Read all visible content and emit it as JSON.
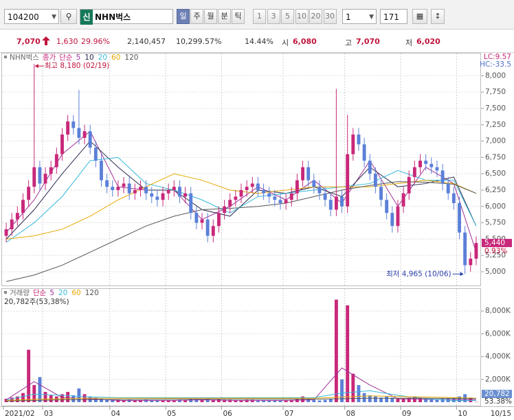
{
  "toolbar": {
    "code": "104200",
    "badge": "신",
    "name": "NHN벅스",
    "periods": [
      "일",
      "주",
      "월",
      "분",
      "틱"
    ],
    "intervals": [
      "1",
      "3",
      "5",
      "10",
      "20",
      "30"
    ],
    "unit": "1",
    "count": "171"
  },
  "info": {
    "price": "7,070",
    "change": "1,630",
    "change_rate": "29.96%",
    "volume": "2,140,457",
    "volume_rate": "10,299.57%",
    "turnover": "14.44%",
    "open_label": "시",
    "open": "6,080",
    "high_label": "고",
    "high": "7,070",
    "low_label": "저",
    "low": "6,020"
  },
  "chart_data": [
    {
      "type": "candlestick",
      "name": "NHN벅스",
      "legend_price": "종가",
      "legend_ma": "단순",
      "open": [
        5550,
        5650,
        5800,
        5900,
        6100,
        6300,
        6600,
        6350,
        6500,
        6600,
        6800,
        7100,
        7300,
        7200,
        7050,
        7150,
        6900,
        6700,
        6400,
        6300,
        6250,
        6300,
        6350,
        6200,
        6250,
        6300,
        6200,
        6150,
        6100,
        6200,
        6250,
        6300,
        6150,
        6200,
        5900,
        5750,
        5800,
        5550,
        5700,
        5900,
        6000,
        6100,
        6150,
        6250,
        6300,
        6350,
        6250,
        6200,
        6150,
        6100,
        6050,
        6100,
        6200,
        6400,
        6600,
        6400,
        6300,
        6200,
        6100,
        5950,
        6150,
        6000,
        6800,
        7100,
        6950,
        6700,
        6500,
        6300,
        6100,
        5900,
        5700,
        6000,
        6200,
        6450,
        6600,
        6700,
        6650,
        6600,
        6550,
        6350,
        6200,
        6050,
        5600,
        5100,
        5200
      ],
      "high": [
        5750,
        5900,
        6000,
        6200,
        6400,
        8180,
        6700,
        6600,
        6700,
        6900,
        7200,
        7400,
        7400,
        7780,
        7250,
        7250,
        7000,
        6800,
        6500,
        6400,
        6400,
        6450,
        6450,
        6350,
        6400,
        6400,
        6300,
        6250,
        6300,
        6350,
        6400,
        6400,
        6300,
        6300,
        6000,
        5900,
        5900,
        5800,
        6000,
        6100,
        6200,
        6250,
        6350,
        6400,
        6450,
        6450,
        6350,
        6300,
        6250,
        6200,
        6200,
        6300,
        6500,
        6700,
        6700,
        6500,
        6400,
        6300,
        6200,
        7800,
        6250,
        7400,
        7200,
        7200,
        7050,
        6800,
        6600,
        6400,
        6200,
        6000,
        6100,
        6300,
        6550,
        6700,
        6800,
        6800,
        6750,
        6700,
        6650,
        6450,
        6300,
        6150,
        5700,
        5300,
        5540
      ],
      "low": [
        5450,
        5550,
        5700,
        5800,
        6000,
        6200,
        6250,
        6250,
        6400,
        6500,
        6700,
        7000,
        7100,
        6950,
        6950,
        6800,
        6600,
        6300,
        6200,
        6150,
        6150,
        6200,
        6100,
        6100,
        6150,
        6100,
        6050,
        6000,
        6000,
        6100,
        6150,
        6050,
        6050,
        5800,
        5650,
        5650,
        5450,
        5450,
        5600,
        5800,
        5900,
        6000,
        6050,
        6150,
        6200,
        6150,
        6100,
        6050,
        6000,
        5950,
        5950,
        6000,
        6100,
        6300,
        6300,
        6200,
        6100,
        6000,
        5850,
        5850,
        5900,
        5900,
        6700,
        6850,
        6600,
        6400,
        6200,
        6000,
        5800,
        5600,
        5600,
        5900,
        6100,
        6350,
        6500,
        6550,
        6500,
        6450,
        6250,
        6100,
        5950,
        5500,
        4965,
        5000,
        5100
      ],
      "close": [
        5650,
        5800,
        5900,
        6100,
        6300,
        6600,
        6350,
        6500,
        6600,
        6800,
        7100,
        7300,
        7200,
        7050,
        7150,
        6900,
        6700,
        6400,
        6300,
        6250,
        6300,
        6350,
        6200,
        6250,
        6300,
        6200,
        6150,
        6100,
        6200,
        6250,
        6300,
        6150,
        6200,
        5900,
        5750,
        5800,
        5550,
        5700,
        5900,
        6000,
        6100,
        6150,
        6250,
        6300,
        6350,
        6250,
        6200,
        6150,
        6100,
        6050,
        6100,
        6200,
        6400,
        6600,
        6400,
        6300,
        6200,
        6100,
        5950,
        6150,
        6000,
        6800,
        7100,
        6950,
        6700,
        6500,
        6300,
        6100,
        5900,
        5700,
        6000,
        6200,
        6450,
        6600,
        6700,
        6650,
        6600,
        6550,
        6350,
        6200,
        6050,
        5600,
        5100,
        5200,
        5440
      ],
      "up_color": "#c8287a",
      "down_color": "#5b80d8",
      "ylim": [
        4800,
        8340
      ],
      "yticks": [
        {
          "value": 5000,
          "label": "5,000"
        },
        {
          "value": 5250,
          "label": "5,250"
        },
        {
          "value": 5500,
          "label": "5,500"
        },
        {
          "value": 5750,
          "label": "5,750"
        },
        {
          "value": 6000,
          "label": "6,000"
        },
        {
          "value": 6250,
          "label": "6,250"
        },
        {
          "value": 6500,
          "label": "6,500"
        },
        {
          "value": 6750,
          "label": "6,750"
        },
        {
          "value": 7000,
          "label": "7,000"
        },
        {
          "value": 7250,
          "label": "7,250"
        },
        {
          "value": 7500,
          "label": "7,500"
        },
        {
          "value": 7750,
          "label": "7,750"
        },
        {
          "value": 8000,
          "label": "8,000"
        }
      ],
      "grid": true,
      "ma_x": [
        0,
        5,
        10,
        15,
        20,
        25,
        30,
        35,
        40,
        45,
        50,
        55,
        60,
        65,
        70,
        75,
        80,
        84
      ],
      "ma_series": [
        {
          "name": "5",
          "color": "#a0309a",
          "values": [
            5600,
            6100,
            6800,
            7150,
            6300,
            6250,
            6250,
            5800,
            6000,
            6300,
            6100,
            6400,
            6050,
            6700,
            6000,
            6600,
            6350,
            5300
          ]
        },
        {
          "name": "10",
          "color": "#27294a",
          "values": [
            5500,
            5950,
            6500,
            7000,
            6600,
            6250,
            6250,
            5950,
            5850,
            6250,
            6200,
            6300,
            6150,
            6600,
            6300,
            6350,
            6450,
            5700
          ]
        },
        {
          "name": "20",
          "color": "#35b9da",
          "values": [
            5450,
            5750,
            6150,
            6700,
            6750,
            6350,
            6250,
            6100,
            5900,
            6150,
            6200,
            6250,
            6300,
            6350,
            6550,
            6400,
            6400,
            5700
          ]
        },
        {
          "name": "60",
          "color": "#e6a800",
          "values": [
            5500,
            5550,
            5650,
            5850,
            6100,
            6300,
            6500,
            6400,
            6250,
            6200,
            6250,
            6300,
            6300,
            6300,
            6350,
            6400,
            6350,
            6200
          ]
        },
        {
          "name": "120",
          "color": "#555555",
          "values": [
            4850,
            4950,
            5100,
            5300,
            5500,
            5700,
            5850,
            5950,
            5970,
            6000,
            6050,
            6150,
            6250,
            6320,
            6380,
            6370,
            6340,
            6200
          ]
        }
      ],
      "annotations": {
        "high": "최고 8,180 (02/19)",
        "low": "최저 4,965 (10/06)"
      },
      "last_label": "5,440",
      "change_label": "0.93%",
      "corner_labels": [
        "LC:9.57",
        "HC:-33.5"
      ]
    },
    {
      "type": "bar",
      "title": "거래량",
      "legend_ma": "단순",
      "subtitle": "20,782주(53,38%)",
      "values": [
        300,
        400,
        500,
        800,
        4600,
        1500,
        2200,
        900,
        600,
        500,
        700,
        900,
        600,
        1200,
        700,
        500,
        400,
        300,
        250,
        200,
        200,
        150,
        200,
        150,
        150,
        200,
        150,
        150,
        150,
        150,
        150,
        200,
        150,
        300,
        250,
        200,
        300,
        200,
        250,
        200,
        200,
        150,
        150,
        200,
        200,
        150,
        150,
        150,
        150,
        150,
        150,
        150,
        300,
        500,
        300,
        200,
        150,
        200,
        300,
        9000,
        2000,
        8500,
        2500,
        1500,
        800,
        600,
        500,
        400,
        500,
        400,
        300,
        300,
        400,
        500,
        400,
        300,
        300,
        250,
        300,
        300,
        300,
        500,
        700,
        400,
        20.782
      ],
      "categories": [
        "2021/02",
        null,
        null,
        null,
        null,
        null,
        null,
        "03",
        null,
        null,
        null,
        null,
        null,
        null,
        null,
        null,
        null,
        null,
        null,
        "04",
        null,
        null,
        null,
        null,
        null,
        null,
        null,
        null,
        null,
        "05",
        null,
        null,
        null,
        null,
        null,
        null,
        null,
        null,
        null,
        "06",
        null,
        null,
        null,
        null,
        null,
        null,
        null,
        null,
        null,
        null,
        "07",
        null,
        null,
        null,
        null,
        null,
        null,
        null,
        null,
        null,
        null,
        "08",
        null,
        null,
        null,
        null,
        null,
        null,
        null,
        null,
        null,
        "09",
        null,
        null,
        null,
        null,
        null,
        null,
        null,
        null,
        null,
        "10",
        null,
        null,
        null
      ],
      "x_end_label": "10/15",
      "ylim": [
        0,
        9700
      ],
      "yticks": [
        {
          "value": 2000,
          "label": "2,000K"
        },
        {
          "value": 4000,
          "label": "4,000K"
        },
        {
          "value": 6000,
          "label": "6,000K"
        },
        {
          "value": 8000,
          "label": "8,000K"
        }
      ],
      "grid": true,
      "ma_x": [
        0,
        5,
        10,
        15,
        20,
        25,
        30,
        35,
        40,
        45,
        50,
        55,
        60,
        65,
        70,
        75,
        80,
        84
      ],
      "ma_series": [
        {
          "name": "5",
          "color": "#a0309a",
          "values": [
            200,
            1800,
            400,
            300,
            150,
            150,
            150,
            200,
            150,
            150,
            150,
            200,
            3000,
            1500,
            300,
            250,
            200,
            200
          ]
        },
        {
          "name": "20",
          "color": "#35b9da",
          "values": [
            200,
            700,
            600,
            450,
            400,
            400,
            400,
            400,
            400,
            400,
            400,
            400,
            800,
            1000,
            600,
            300,
            150,
            150
          ]
        },
        {
          "name": "60",
          "color": "#e6a800",
          "values": [
            150,
            250,
            300,
            350,
            350,
            350,
            350,
            350,
            350,
            350,
            350,
            350,
            450,
            550,
            500,
            450,
            400,
            350
          ]
        },
        {
          "name": "120",
          "color": "#555555",
          "values": [
            100,
            150,
            200,
            220,
            240,
            250,
            260,
            260,
            260,
            260,
            260,
            260,
            300,
            350,
            350,
            350,
            330,
            320
          ]
        }
      ],
      "last_label": "20,782",
      "ratio_label": "53.38%"
    }
  ]
}
